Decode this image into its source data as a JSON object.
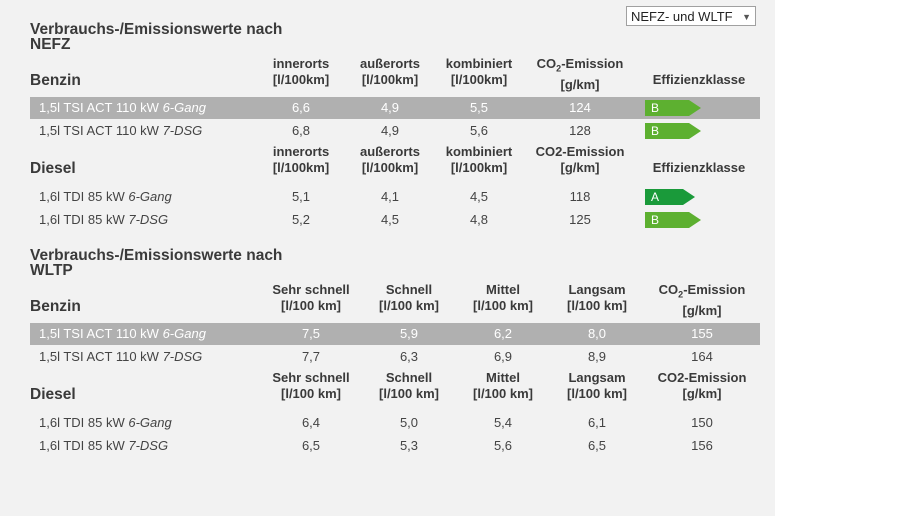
{
  "selector": {
    "value": "NEFZ- und WLTF"
  },
  "colors": {
    "class_a": "#1a9a3a",
    "class_b": "#5db030",
    "highlight": "#b0b0b0"
  },
  "nefz": {
    "title_line1": "Verbrauchs-/Emissionswerte nach",
    "title_line2": "NEFZ",
    "benzin": {
      "label": "Benzin",
      "headers": {
        "innerorts": [
          "innerorts",
          "[l/100km]"
        ],
        "ausserorts": [
          "außerorts",
          "[l/100km]"
        ],
        "kombiniert": [
          "kombiniert",
          "[l/100km]"
        ],
        "co2_prefix": "CO",
        "co2_sub": "2",
        "co2_suffix": "-Emission",
        "co2_unit": "[g/km]",
        "effizienz": "Effizienzklasse"
      },
      "rows": [
        {
          "model": "1,5l TSI ACT 110 kW ",
          "gear": "6-Gang",
          "innerorts": "6,6",
          "ausserorts": "4,9",
          "kombiniert": "5,5",
          "co2": "124",
          "class": "B"
        },
        {
          "model": "1,5l TSI ACT 110 kW ",
          "gear": "7-DSG",
          "innerorts": "6,8",
          "ausserorts": "4,9",
          "kombiniert": "5,6",
          "co2": "128",
          "class": "B"
        }
      ]
    },
    "diesel": {
      "label": "Diesel",
      "headers": {
        "innerorts": [
          "innerorts",
          "[l/100km]"
        ],
        "ausserorts": [
          "außerorts",
          "[l/100km]"
        ],
        "kombiniert": [
          "kombiniert",
          "[l/100km]"
        ],
        "co2": [
          "CO2-Emission",
          "[g/km]"
        ],
        "effizienz": "Effizienzklasse"
      },
      "rows": [
        {
          "model": "1,6l TDI 85 kW ",
          "gear": "6-Gang",
          "innerorts": "5,1",
          "ausserorts": "4,1",
          "kombiniert": "4,5",
          "co2": "118",
          "class": "A"
        },
        {
          "model": "1,6l TDI 85 kW ",
          "gear": "7-DSG",
          "innerorts": "5,2",
          "ausserorts": "4,5",
          "kombiniert": "4,8",
          "co2": "125",
          "class": "B"
        }
      ]
    }
  },
  "wltp": {
    "title_line1": "Verbrauchs-/Emissionswerte nach",
    "title_line2": "WLTP",
    "benzin": {
      "label": "Benzin",
      "headers": {
        "sehr_schnell": [
          "Sehr schnell",
          "[l/100 km]"
        ],
        "schnell": [
          "Schnell",
          "[l/100 km]"
        ],
        "mittel": [
          "Mittel",
          "[l/100 km]"
        ],
        "langsam": [
          "Langsam",
          "[l/100 km]"
        ],
        "co2_prefix": "CO",
        "co2_sub": "2",
        "co2_suffix": "-Emission",
        "co2_unit": "[g/km]"
      },
      "rows": [
        {
          "model": "1,5l TSI ACT 110 kW ",
          "gear": "6-Gang",
          "sehr_schnell": "7,5",
          "schnell": "5,9",
          "mittel": "6,2",
          "langsam": "8,0",
          "co2": "155"
        },
        {
          "model": "1,5l TSI ACT 110 kW ",
          "gear": "7-DSG",
          "sehr_schnell": "7,7",
          "schnell": "6,3",
          "mittel": "6,9",
          "langsam": "8,9",
          "co2": "164"
        }
      ]
    },
    "diesel": {
      "label": "Diesel",
      "headers": {
        "sehr_schnell": [
          "Sehr schnell",
          "[l/100 km]"
        ],
        "schnell": [
          "Schnell",
          "[l/100 km]"
        ],
        "mittel": [
          "Mittel",
          "[l/100 km]"
        ],
        "langsam": [
          "Langsam",
          "[l/100 km]"
        ],
        "co2": [
          "CO2-Emission",
          "[g/km]"
        ]
      },
      "rows": [
        {
          "model": "1,6l TDI 85 kW ",
          "gear": "6-Gang",
          "sehr_schnell": "6,4",
          "schnell": "5,0",
          "mittel": "5,4",
          "langsam": "6,1",
          "co2": "150"
        },
        {
          "model": "1,6l TDI 85 kW ",
          "gear": "7-DSG",
          "sehr_schnell": "6,5",
          "schnell": "5,3",
          "mittel": "5,6",
          "langsam": "6,5",
          "co2": "156"
        }
      ]
    }
  }
}
